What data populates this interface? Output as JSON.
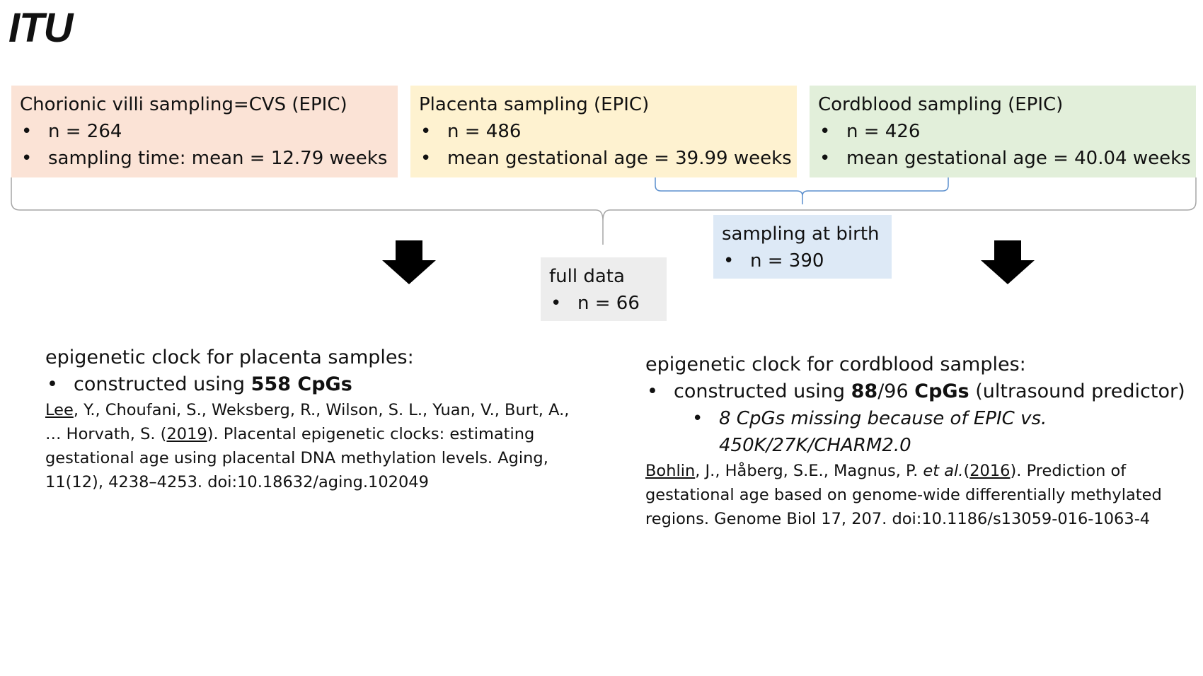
{
  "title": "ITU",
  "boxes": {
    "cvs": {
      "heading": "Chorionic villi sampling=CVS (EPIC)",
      "bullets": [
        "n = 264",
        "sampling time: mean = 12.79 weeks"
      ],
      "color": "#fbe3d6"
    },
    "placenta": {
      "heading": "Placenta sampling (EPIC)",
      "bullets": [
        "n = 486",
        "mean gestational age = 39.99 weeks"
      ],
      "color": "#fef2d0"
    },
    "cordblood": {
      "heading": "Cordblood sampling (EPIC)",
      "bullets": [
        "n = 426",
        "mean gestational age = 40.04 weeks"
      ],
      "color": "#e2efda"
    },
    "birth": {
      "heading": "sampling at birth",
      "bullets": [
        "n = 390"
      ],
      "color": "#dde9f6"
    },
    "full": {
      "heading": "full data",
      "bullets": [
        "n = 66"
      ],
      "color": "#ededed"
    }
  },
  "clock_placenta": {
    "heading": "epigenetic clock for placenta samples:",
    "bullet_prefix": "constructed using ",
    "bullet_bold": "558 CpGs",
    "ref": {
      "author_link": "Lee",
      "line1_rest": ", Y., Choufani, S., Weksberg, R., Wilson, S. L., Yuan, V., Burt, A.,",
      "line2_start": "… Horvath, S. (",
      "year_link": "2019",
      "line2_rest": "). Placental epigenetic clocks: estimating",
      "line3": "gestational age using placental DNA methylation levels. Aging,",
      "line4": "11(12), 4238–4253. doi:10.18632/aging.102049"
    }
  },
  "clock_cordblood": {
    "heading": "epigenetic clock for cordblood samples:",
    "bullet_prefix": "constructed using ",
    "bullet_bold1": "88",
    "bullet_mid": "/96 ",
    "bullet_bold2": "CpGs",
    "bullet_suffix": " (ultrasound predictor)",
    "sub_line1": "8 CpGs missing because of EPIC vs.",
    "sub_line2": "450K/27K/CHARM2.0",
    "ref": {
      "author_link": "Bohlin",
      "line1_mid": ", J., Håberg, S.E., Magnus, P. ",
      "etal": "et al.",
      "paren_open": "(",
      "year_link": "2016",
      "line1_rest": "). Prediction of",
      "line2": "gestational age based on genome-wide differentially methylated",
      "line3": "regions. Genome Biol 17, 207. doi:10.1186/s13059-016-1063-4"
    }
  }
}
